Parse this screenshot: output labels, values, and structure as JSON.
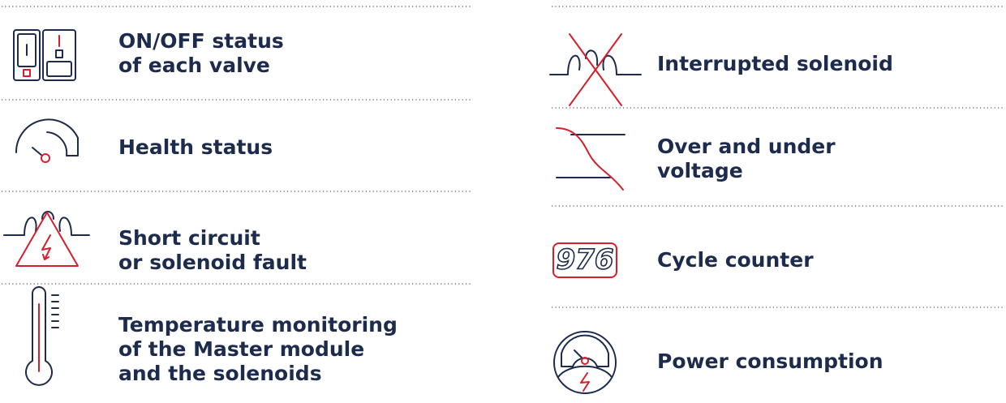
{
  "left": [
    {
      "lines": [
        "ON/OFF status",
        "of each valve"
      ]
    },
    {
      "lines": [
        "Health status"
      ]
    },
    {
      "lines": [
        "Short circuit",
        "or solenoid fault"
      ]
    },
    {
      "lines": [
        "Temperature monitoring",
        "of the Master module",
        "and the solenoids"
      ]
    }
  ],
  "right": [
    {
      "lines": [
        "Interrupted solenoid"
      ]
    },
    {
      "lines": [
        "Over and under",
        "voltage"
      ]
    },
    {
      "lines": [
        "Cycle counter"
      ],
      "icon_text": "976"
    },
    {
      "lines": [
        "Power consumption"
      ]
    }
  ]
}
